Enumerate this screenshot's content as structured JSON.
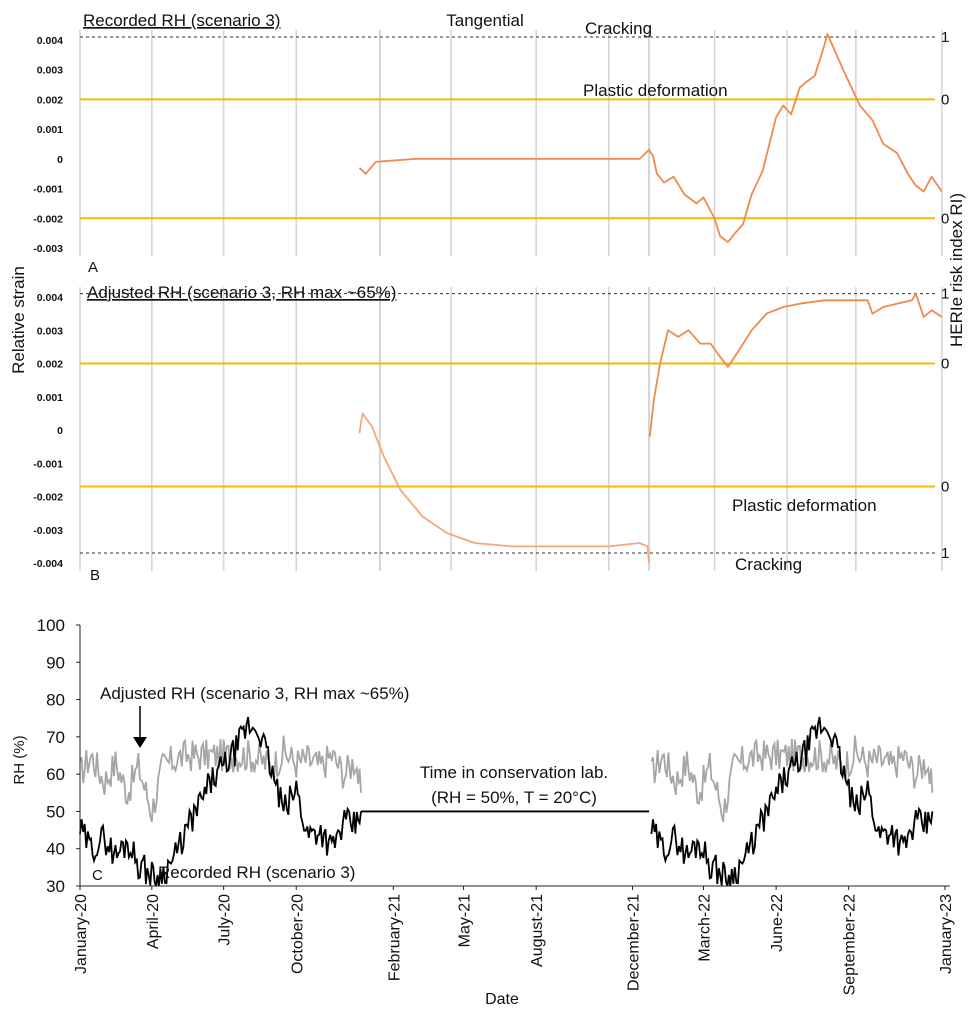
{
  "figure": {
    "ylabel_left": "Relative strain",
    "ylabel_right": "HERIe risk index RI)",
    "xlabel": "Date"
  },
  "colors": {
    "threshold": "#f6b800",
    "strain_a": "#f08a4b",
    "strain_b": "#f4a77a",
    "gray_line": "#d6d6d6",
    "rh_adjusted": "#a6a6a6",
    "rh_recorded": "#000000"
  },
  "chart_data": [
    {
      "id": "A",
      "type": "line",
      "panel_letter": "A",
      "title": "Recorded RH (scenario 3)",
      "subtitle": "Tangential",
      "y_ticks": [
        "0.004",
        "0.003",
        "0.002",
        "0.001",
        "0",
        "-0.001",
        "-0.002",
        "-0.003"
      ],
      "ylim": [
        -0.003,
        0.004
      ],
      "x_range": [
        "2020-01-01",
        "2023-01-01"
      ],
      "thresholds": [
        {
          "name": "Cracking",
          "value": 0.0041,
          "risk_index": "1",
          "style": "dashed"
        },
        {
          "name": "Plastic deformation",
          "value": 0.002,
          "risk_index": "0",
          "style": "solid"
        },
        {
          "name": "",
          "value": -0.002,
          "risk_index": "0",
          "style": "solid"
        }
      ],
      "series": [
        {
          "x": [
            "2020-12-20",
            "2020-12-28",
            "2021-01-10",
            "2021-03-01",
            "2021-06-01",
            "2021-09-01",
            "2021-12-10",
            "2021-12-22",
            "2021-12-27",
            "2022-01-01",
            "2022-01-10",
            "2022-01-22",
            "2022-02-05",
            "2022-02-20",
            "2022-03-01",
            "2022-03-15",
            "2022-03-22",
            "2022-04-01",
            "2022-04-10",
            "2022-04-20",
            "2022-05-01",
            "2022-05-15",
            "2022-06-01",
            "2022-06-10",
            "2022-06-20",
            "2022-07-01",
            "2022-07-10",
            "2022-07-20",
            "2022-08-01",
            "2022-08-05",
            "2022-08-15",
            "2022-08-25",
            "2022-09-01",
            "2022-09-15",
            "2022-10-01",
            "2022-10-15",
            "2022-11-01",
            "2022-11-15",
            "2022-11-25",
            "2022-12-05",
            "2022-12-15",
            "2022-12-28"
          ],
          "y": [
            -0.0003,
            -0.0005,
            -0.0001,
            0.0,
            0.0,
            0.0,
            0.0,
            0.0003,
            0.0001,
            -0.0005,
            -0.0008,
            -0.0006,
            -0.0012,
            -0.0015,
            -0.0013,
            -0.002,
            -0.0026,
            -0.0028,
            -0.0025,
            -0.0022,
            -0.0012,
            -0.0004,
            0.0014,
            0.0018,
            0.0015,
            0.0024,
            0.0026,
            0.0028,
            0.0038,
            0.0042,
            0.0036,
            0.003,
            0.0026,
            0.0018,
            0.0013,
            0.0005,
            0.0002,
            -0.0005,
            -0.0009,
            -0.0011,
            -0.0006,
            -0.0011
          ]
        }
      ]
    },
    {
      "id": "B",
      "type": "line",
      "panel_letter": "B",
      "title": "Adjusted RH (scenario 3, RH max ~65%)",
      "y_ticks": [
        "0.004",
        "0.003",
        "0.002",
        "0.001",
        "0",
        "-0.001",
        "-0.002",
        "-0.003",
        "-0.004"
      ],
      "ylim": [
        -0.004,
        0.004
      ],
      "x_range": [
        "2020-01-01",
        "2023-01-01"
      ],
      "thresholds": [
        {
          "name": "",
          "value": 0.0041,
          "risk_index": "1",
          "style": "dashed"
        },
        {
          "name": "",
          "value": 0.002,
          "risk_index": "0",
          "style": "solid"
        },
        {
          "name": "Plastic deformation",
          "value": -0.0017,
          "risk_index": "0",
          "style": "solid"
        },
        {
          "name": "Cracking",
          "value": -0.0037,
          "risk_index": "1",
          "style": "dashed"
        }
      ],
      "series": [
        {
          "x": [
            "2020-12-20",
            "2020-12-24",
            "2021-01-05",
            "2021-01-20",
            "2021-02-10",
            "2021-03-10",
            "2021-04-10",
            "2021-05-15",
            "2021-07-01",
            "2021-09-01",
            "2021-11-01",
            "2021-12-10",
            "2021-12-20",
            "2021-12-22"
          ],
          "y": [
            -0.0001,
            0.0005,
            0.0001,
            -0.0008,
            -0.0018,
            -0.0026,
            -0.0031,
            -0.0034,
            -0.0035,
            -0.0035,
            -0.0035,
            -0.0034,
            -0.0035,
            -0.004
          ]
        },
        {
          "x": [
            "2021-12-23",
            "2021-12-28",
            "2022-01-05",
            "2022-01-15",
            "2022-01-28",
            "2022-02-10",
            "2022-02-25",
            "2022-03-10",
            "2022-03-22",
            "2022-04-01",
            "2022-04-15",
            "2022-05-01",
            "2022-05-20",
            "2022-06-10",
            "2022-07-01",
            "2022-08-01",
            "2022-08-20",
            "2022-09-10",
            "2022-09-25",
            "2022-10-01",
            "2022-10-15",
            "2022-11-01",
            "2022-11-20",
            "2022-11-25",
            "2022-12-05",
            "2022-12-15",
            "2022-12-28"
          ],
          "y": [
            -0.0002,
            0.0009,
            0.002,
            0.003,
            0.0028,
            0.003,
            0.0026,
            0.0026,
            0.0022,
            0.0019,
            0.0024,
            0.003,
            0.0035,
            0.0037,
            0.0038,
            0.0039,
            0.0039,
            0.0039,
            0.0039,
            0.0035,
            0.0037,
            0.0038,
            0.0039,
            0.0041,
            0.0034,
            0.0036,
            0.0034
          ]
        }
      ]
    },
    {
      "id": "C",
      "type": "line",
      "panel_letter": "C",
      "ylabel": "RH (%)",
      "xlabel": "Date",
      "y_ticks": [
        "100",
        "90",
        "80",
        "70",
        "60",
        "50",
        "40",
        "30"
      ],
      "ylim": [
        30,
        100
      ],
      "x_range": [
        "2020-01-01",
        "2023-01-01"
      ],
      "x_ticks": [
        "January-20",
        "April-20",
        "July-20",
        "October-20",
        "February-21",
        "May-21",
        "August-21",
        "December-21",
        "March-22",
        "June-22",
        "September-22",
        "January-23"
      ],
      "annotations": [
        {
          "text": "Adjusted RH (scenario 3, RH max ~65%)"
        },
        {
          "text": "Time in conservation lab."
        },
        {
          "text": "(RH = 50%, T = 20°C)"
        },
        {
          "text": "Recorded RH (scenario 3)"
        }
      ],
      "series": [
        {
          "name": "Adjusted RH (scenario 3, RH max ~65%)",
          "x": [
            "2020-01-01",
            "2020-01-15",
            "2020-02-01",
            "2020-02-15",
            "2020-03-01",
            "2020-03-15",
            "2020-04-01",
            "2020-04-15",
            "2020-05-01",
            "2020-05-15",
            "2020-06-01",
            "2020-06-15",
            "2020-07-01",
            "2020-07-15",
            "2020-08-01",
            "2020-08-15",
            "2020-09-01",
            "2020-09-15",
            "2020-10-01",
            "2020-10-15",
            "2020-11-01",
            "2020-11-15",
            "2020-12-01",
            "2020-12-15",
            "2020-12-22"
          ],
          "y": [
            60,
            65,
            58,
            63,
            55,
            62,
            50,
            62,
            64,
            65,
            65,
            65,
            65,
            65,
            65,
            64,
            62,
            66,
            63,
            64,
            62,
            65,
            60,
            64,
            55
          ]
        },
        {
          "name": "Recorded RH (scenario 3)",
          "x": [
            "2020-01-01",
            "2020-01-15",
            "2020-02-01",
            "2020-02-15",
            "2020-03-01",
            "2020-03-15",
            "2020-04-01",
            "2020-04-10",
            "2020-05-01",
            "2020-05-15",
            "2020-06-01",
            "2020-06-15",
            "2020-07-01",
            "2020-07-15",
            "2020-08-01",
            "2020-08-15",
            "2020-09-01",
            "2020-09-15",
            "2020-10-01",
            "2020-10-15",
            "2020-11-01",
            "2020-11-15",
            "2020-12-01",
            "2020-12-15",
            "2020-12-22"
          ],
          "y": [
            45,
            40,
            43,
            38,
            42,
            36,
            33,
            32,
            38,
            45,
            52,
            58,
            62,
            66,
            73,
            72,
            60,
            50,
            56,
            44,
            45,
            40,
            47,
            46,
            50
          ]
        },
        {
          "name": "Time in conservation lab.",
          "x": [
            "2020-12-22",
            "2021-12-22"
          ],
          "y": [
            50,
            50
          ]
        }
      ]
    }
  ]
}
